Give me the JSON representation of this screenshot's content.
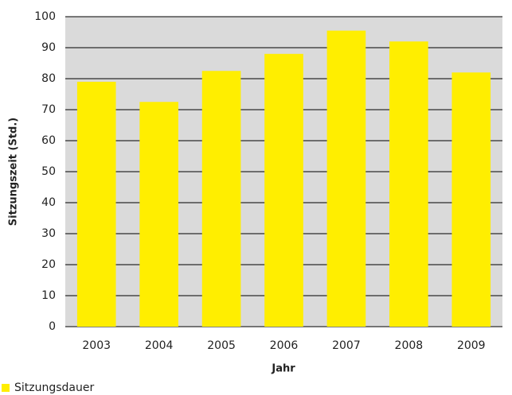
{
  "chart_data": {
    "type": "bar",
    "x_label": "Jahr",
    "y_label": "Sitzungszeit (Std.)",
    "categories": [
      "2003",
      "2004",
      "2005",
      "2006",
      "2007",
      "2008",
      "2009"
    ],
    "series": [
      {
        "name": "Sitzungsdauer",
        "color": "#ffee00",
        "values": [
          79,
          72.5,
          82.5,
          88,
          95.5,
          92,
          82
        ]
      }
    ],
    "ylim": [
      0,
      100
    ],
    "yticks": [
      0,
      10,
      20,
      30,
      40,
      50,
      60,
      70,
      80,
      90,
      100
    ],
    "grid": true,
    "legend": "bottom-left"
  }
}
